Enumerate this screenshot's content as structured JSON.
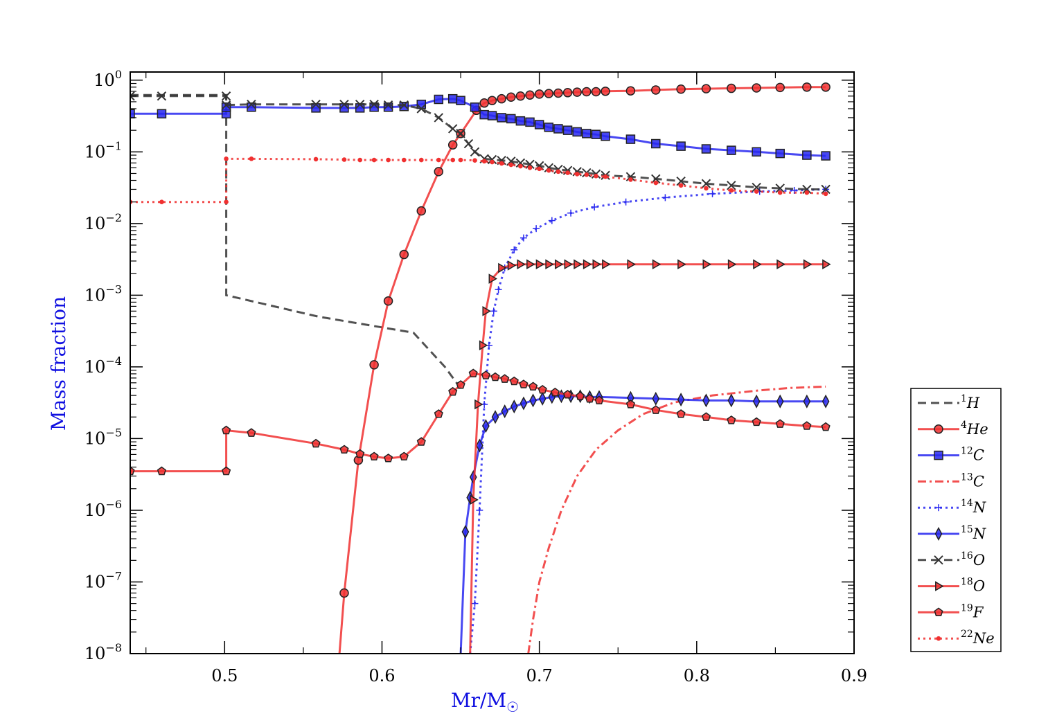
{
  "chart_data": {
    "type": "line",
    "xlabel": "Mr/M",
    "xlabel_symbol": "☉",
    "ylabel": "Mass fraction",
    "xlim": [
      0.44,
      0.9
    ],
    "ylim": [
      1e-08,
      1.3
    ],
    "yscale": "log",
    "xticks": [
      0.5,
      0.6,
      0.7,
      0.8,
      0.9
    ],
    "xtick_labels": [
      "0.5",
      "0.6",
      "0.7",
      "0.8",
      "0.9"
    ],
    "yticks": [
      0,
      -1,
      -2,
      -3,
      -4,
      -5,
      -6,
      -7,
      -8
    ],
    "ytick_base": "10",
    "ytick_exponents": [
      "0",
      "−1",
      "−2",
      "−3",
      "−4",
      "−5",
      "−6",
      "−7",
      "−8"
    ],
    "grid": false,
    "legend_position": "outside-right",
    "colors": {
      "black": "#333333",
      "red": "#f03030",
      "blue": "#2828f0",
      "axis_label": "#1010e0"
    },
    "series": [
      {
        "name": "H",
        "mass_number": "1",
        "color": "#333333",
        "linestyle": "dashed",
        "marker": "none",
        "x": [
          0.44,
          0.501,
          0.501,
          0.56,
          0.62,
          0.64,
          0.65
        ],
        "y": [
          0.62,
          0.62,
          0.001,
          0.0005,
          0.0003,
          0.0001,
          5e-05
        ]
      },
      {
        "name": "He",
        "mass_number": "4",
        "color": "#f03030",
        "linestyle": "solid",
        "marker": "circle",
        "x": [
          0.573,
          0.576,
          0.585,
          0.595,
          0.604,
          0.614,
          0.625,
          0.636,
          0.645,
          0.65,
          0.66,
          0.665,
          0.67,
          0.676,
          0.682,
          0.688,
          0.694,
          0.7,
          0.706,
          0.712,
          0.718,
          0.724,
          0.73,
          0.736,
          0.742,
          0.758,
          0.774,
          0.79,
          0.806,
          0.822,
          0.838,
          0.853,
          0.87,
          0.882
        ],
        "y": [
          1e-08,
          7e-08,
          5e-06,
          0.000107,
          0.00083,
          0.0037,
          0.015,
          0.053,
          0.125,
          0.18,
          0.38,
          0.48,
          0.52,
          0.55,
          0.58,
          0.6,
          0.62,
          0.64,
          0.65,
          0.66,
          0.67,
          0.68,
          0.69,
          0.69,
          0.7,
          0.71,
          0.73,
          0.75,
          0.76,
          0.77,
          0.78,
          0.79,
          0.8,
          0.8
        ]
      },
      {
        "name": "C",
        "mass_number": "12",
        "color": "#2828f0",
        "linestyle": "solid",
        "marker": "square",
        "x": [
          0.44,
          0.46,
          0.501,
          0.501,
          0.517,
          0.558,
          0.576,
          0.586,
          0.595,
          0.604,
          0.614,
          0.625,
          0.636,
          0.645,
          0.65,
          0.659,
          0.665,
          0.67,
          0.676,
          0.682,
          0.688,
          0.694,
          0.7,
          0.706,
          0.712,
          0.718,
          0.724,
          0.73,
          0.736,
          0.742,
          0.758,
          0.774,
          0.79,
          0.806,
          0.822,
          0.838,
          0.853,
          0.87,
          0.882
        ],
        "y": [
          0.34,
          0.34,
          0.34,
          0.42,
          0.42,
          0.41,
          0.41,
          0.41,
          0.42,
          0.42,
          0.43,
          0.46,
          0.54,
          0.55,
          0.52,
          0.42,
          0.33,
          0.32,
          0.3,
          0.29,
          0.27,
          0.26,
          0.24,
          0.22,
          0.21,
          0.2,
          0.19,
          0.18,
          0.175,
          0.165,
          0.15,
          0.13,
          0.12,
          0.11,
          0.105,
          0.1,
          0.095,
          0.09,
          0.088
        ]
      },
      {
        "name": "C",
        "mass_number": "13",
        "color": "#f03030",
        "linestyle": "dashdot",
        "marker": "none",
        "x": [
          0.693,
          0.696,
          0.7,
          0.706,
          0.714,
          0.724,
          0.736,
          0.75,
          0.766,
          0.786,
          0.81,
          0.84,
          0.86,
          0.882
        ],
        "y": [
          1e-08,
          3e-08,
          1e-07,
          3e-07,
          1e-06,
          3e-06,
          7e-06,
          1.3e-05,
          2.2e-05,
          3.2e-05,
          4e-05,
          4.7e-05,
          5.1e-05,
          5.3e-05
        ]
      },
      {
        "name": "N",
        "mass_number": "14",
        "color": "#2828f0",
        "linestyle": "dotted",
        "marker": "plus",
        "x": [
          0.656,
          0.659,
          0.662,
          0.665,
          0.668,
          0.671,
          0.674,
          0.678,
          0.684,
          0.69,
          0.698,
          0.708,
          0.72,
          0.735,
          0.755,
          0.78,
          0.81,
          0.84,
          0.862,
          0.882
        ],
        "y": [
          1e-08,
          5e-08,
          1e-06,
          3e-05,
          0.0002,
          0.0006,
          0.0012,
          0.0024,
          0.0043,
          0.0063,
          0.0085,
          0.011,
          0.014,
          0.017,
          0.02,
          0.023,
          0.026,
          0.028,
          0.029,
          0.03
        ]
      },
      {
        "name": "N",
        "mass_number": "15",
        "color": "#2828f0",
        "linestyle": "solid",
        "marker": "diamond",
        "x": [
          0.65,
          0.653,
          0.656,
          0.658,
          0.662,
          0.666,
          0.672,
          0.678,
          0.684,
          0.69,
          0.696,
          0.702,
          0.708,
          0.714,
          0.72,
          0.726,
          0.732,
          0.738,
          0.758,
          0.774,
          0.79,
          0.806,
          0.822,
          0.838,
          0.853,
          0.87,
          0.882
        ],
        "y": [
          1e-08,
          5e-07,
          1.5e-06,
          2.9e-06,
          8e-06,
          1.5e-05,
          2e-05,
          2.4e-05,
          2.8e-05,
          3.1e-05,
          3.4e-05,
          3.6e-05,
          3.8e-05,
          3.9e-05,
          3.9e-05,
          3.9e-05,
          3.8e-05,
          3.8e-05,
          3.7e-05,
          3.6e-05,
          3.5e-05,
          3.4e-05,
          3.4e-05,
          3.3e-05,
          3.3e-05,
          3.3e-05,
          3.3e-05
        ]
      },
      {
        "name": "O",
        "mass_number": "16",
        "color": "#333333",
        "linestyle": "dashed",
        "marker": "x",
        "x": [
          0.44,
          0.46,
          0.501,
          0.501,
          0.517,
          0.558,
          0.576,
          0.586,
          0.595,
          0.604,
          0.614,
          0.625,
          0.636,
          0.645,
          0.65,
          0.655,
          0.659,
          0.665,
          0.67,
          0.676,
          0.682,
          0.688,
          0.694,
          0.7,
          0.706,
          0.712,
          0.718,
          0.724,
          0.73,
          0.736,
          0.742,
          0.758,
          0.774,
          0.79,
          0.806,
          0.822,
          0.838,
          0.853,
          0.87,
          0.882
        ],
        "y": [
          0.6,
          0.6,
          0.6,
          0.45,
          0.46,
          0.46,
          0.46,
          0.46,
          0.46,
          0.45,
          0.45,
          0.4,
          0.3,
          0.21,
          0.18,
          0.13,
          0.1,
          0.08,
          0.078,
          0.076,
          0.074,
          0.07,
          0.067,
          0.064,
          0.06,
          0.057,
          0.055,
          0.053,
          0.051,
          0.049,
          0.047,
          0.045,
          0.042,
          0.039,
          0.036,
          0.034,
          0.032,
          0.031,
          0.03,
          0.03
        ]
      },
      {
        "name": "O",
        "mass_number": "18",
        "color": "#f03030",
        "linestyle": "solid",
        "marker": "triangle-right",
        "x": [
          0.656,
          0.658,
          0.661,
          0.664,
          0.666,
          0.67,
          0.676,
          0.682,
          0.688,
          0.694,
          0.7,
          0.706,
          0.712,
          0.718,
          0.724,
          0.73,
          0.736,
          0.742,
          0.758,
          0.774,
          0.79,
          0.806,
          0.822,
          0.838,
          0.853,
          0.87,
          0.882
        ],
        "y": [
          1e-08,
          1.4e-06,
          3e-05,
          0.0002,
          0.0006,
          0.0017,
          0.0024,
          0.0026,
          0.0027,
          0.0027,
          0.0027,
          0.0027,
          0.0027,
          0.0027,
          0.0027,
          0.0027,
          0.0027,
          0.0027,
          0.0027,
          0.0027,
          0.0027,
          0.0027,
          0.0027,
          0.0027,
          0.0027,
          0.0027,
          0.0027
        ]
      },
      {
        "name": "F",
        "mass_number": "19",
        "color": "#f03030",
        "linestyle": "solid",
        "marker": "pentagon",
        "x": [
          0.44,
          0.46,
          0.501,
          0.501,
          0.517,
          0.558,
          0.576,
          0.586,
          0.595,
          0.604,
          0.614,
          0.625,
          0.636,
          0.645,
          0.65,
          0.658,
          0.666,
          0.672,
          0.678,
          0.684,
          0.69,
          0.696,
          0.702,
          0.71,
          0.718,
          0.726,
          0.732,
          0.738,
          0.758,
          0.774,
          0.79,
          0.806,
          0.822,
          0.838,
          0.853,
          0.87,
          0.882
        ],
        "y": [
          3.5e-06,
          3.5e-06,
          3.5e-06,
          1.3e-05,
          1.2e-05,
          8.5e-06,
          7e-06,
          6.1e-06,
          5.6e-06,
          5.3e-06,
          5.6e-06,
          9e-06,
          2.2e-05,
          4.5e-05,
          5.6e-05,
          8.1e-05,
          7.6e-05,
          7.2e-05,
          6.8e-05,
          6.3e-05,
          5.7e-05,
          5.3e-05,
          4.8e-05,
          4.4e-05,
          4.1e-05,
          3.9e-05,
          3.6e-05,
          3.4e-05,
          3e-05,
          2.5e-05,
          2.2e-05,
          2e-05,
          1.8e-05,
          1.7e-05,
          1.6e-05,
          1.5e-05,
          1.45e-05
        ]
      },
      {
        "name": "Ne",
        "mass_number": "22",
        "color": "#f03030",
        "linestyle": "dotted",
        "marker": "dot",
        "x": [
          0.44,
          0.46,
          0.501,
          0.501,
          0.517,
          0.558,
          0.576,
          0.586,
          0.595,
          0.604,
          0.614,
          0.625,
          0.636,
          0.645,
          0.65,
          0.659,
          0.665,
          0.67,
          0.676,
          0.682,
          0.688,
          0.694,
          0.7,
          0.706,
          0.712,
          0.718,
          0.724,
          0.73,
          0.736,
          0.742,
          0.758,
          0.774,
          0.79,
          0.806,
          0.822,
          0.838,
          0.853,
          0.87,
          0.882
        ],
        "y": [
          0.02,
          0.02,
          0.02,
          0.08,
          0.08,
          0.079,
          0.078,
          0.077,
          0.077,
          0.077,
          0.077,
          0.077,
          0.077,
          0.077,
          0.077,
          0.076,
          0.074,
          0.072,
          0.069,
          0.066,
          0.063,
          0.06,
          0.058,
          0.055,
          0.053,
          0.051,
          0.049,
          0.048,
          0.046,
          0.045,
          0.041,
          0.037,
          0.034,
          0.031,
          0.029,
          0.028,
          0.027,
          0.027,
          0.026
        ]
      }
    ]
  }
}
